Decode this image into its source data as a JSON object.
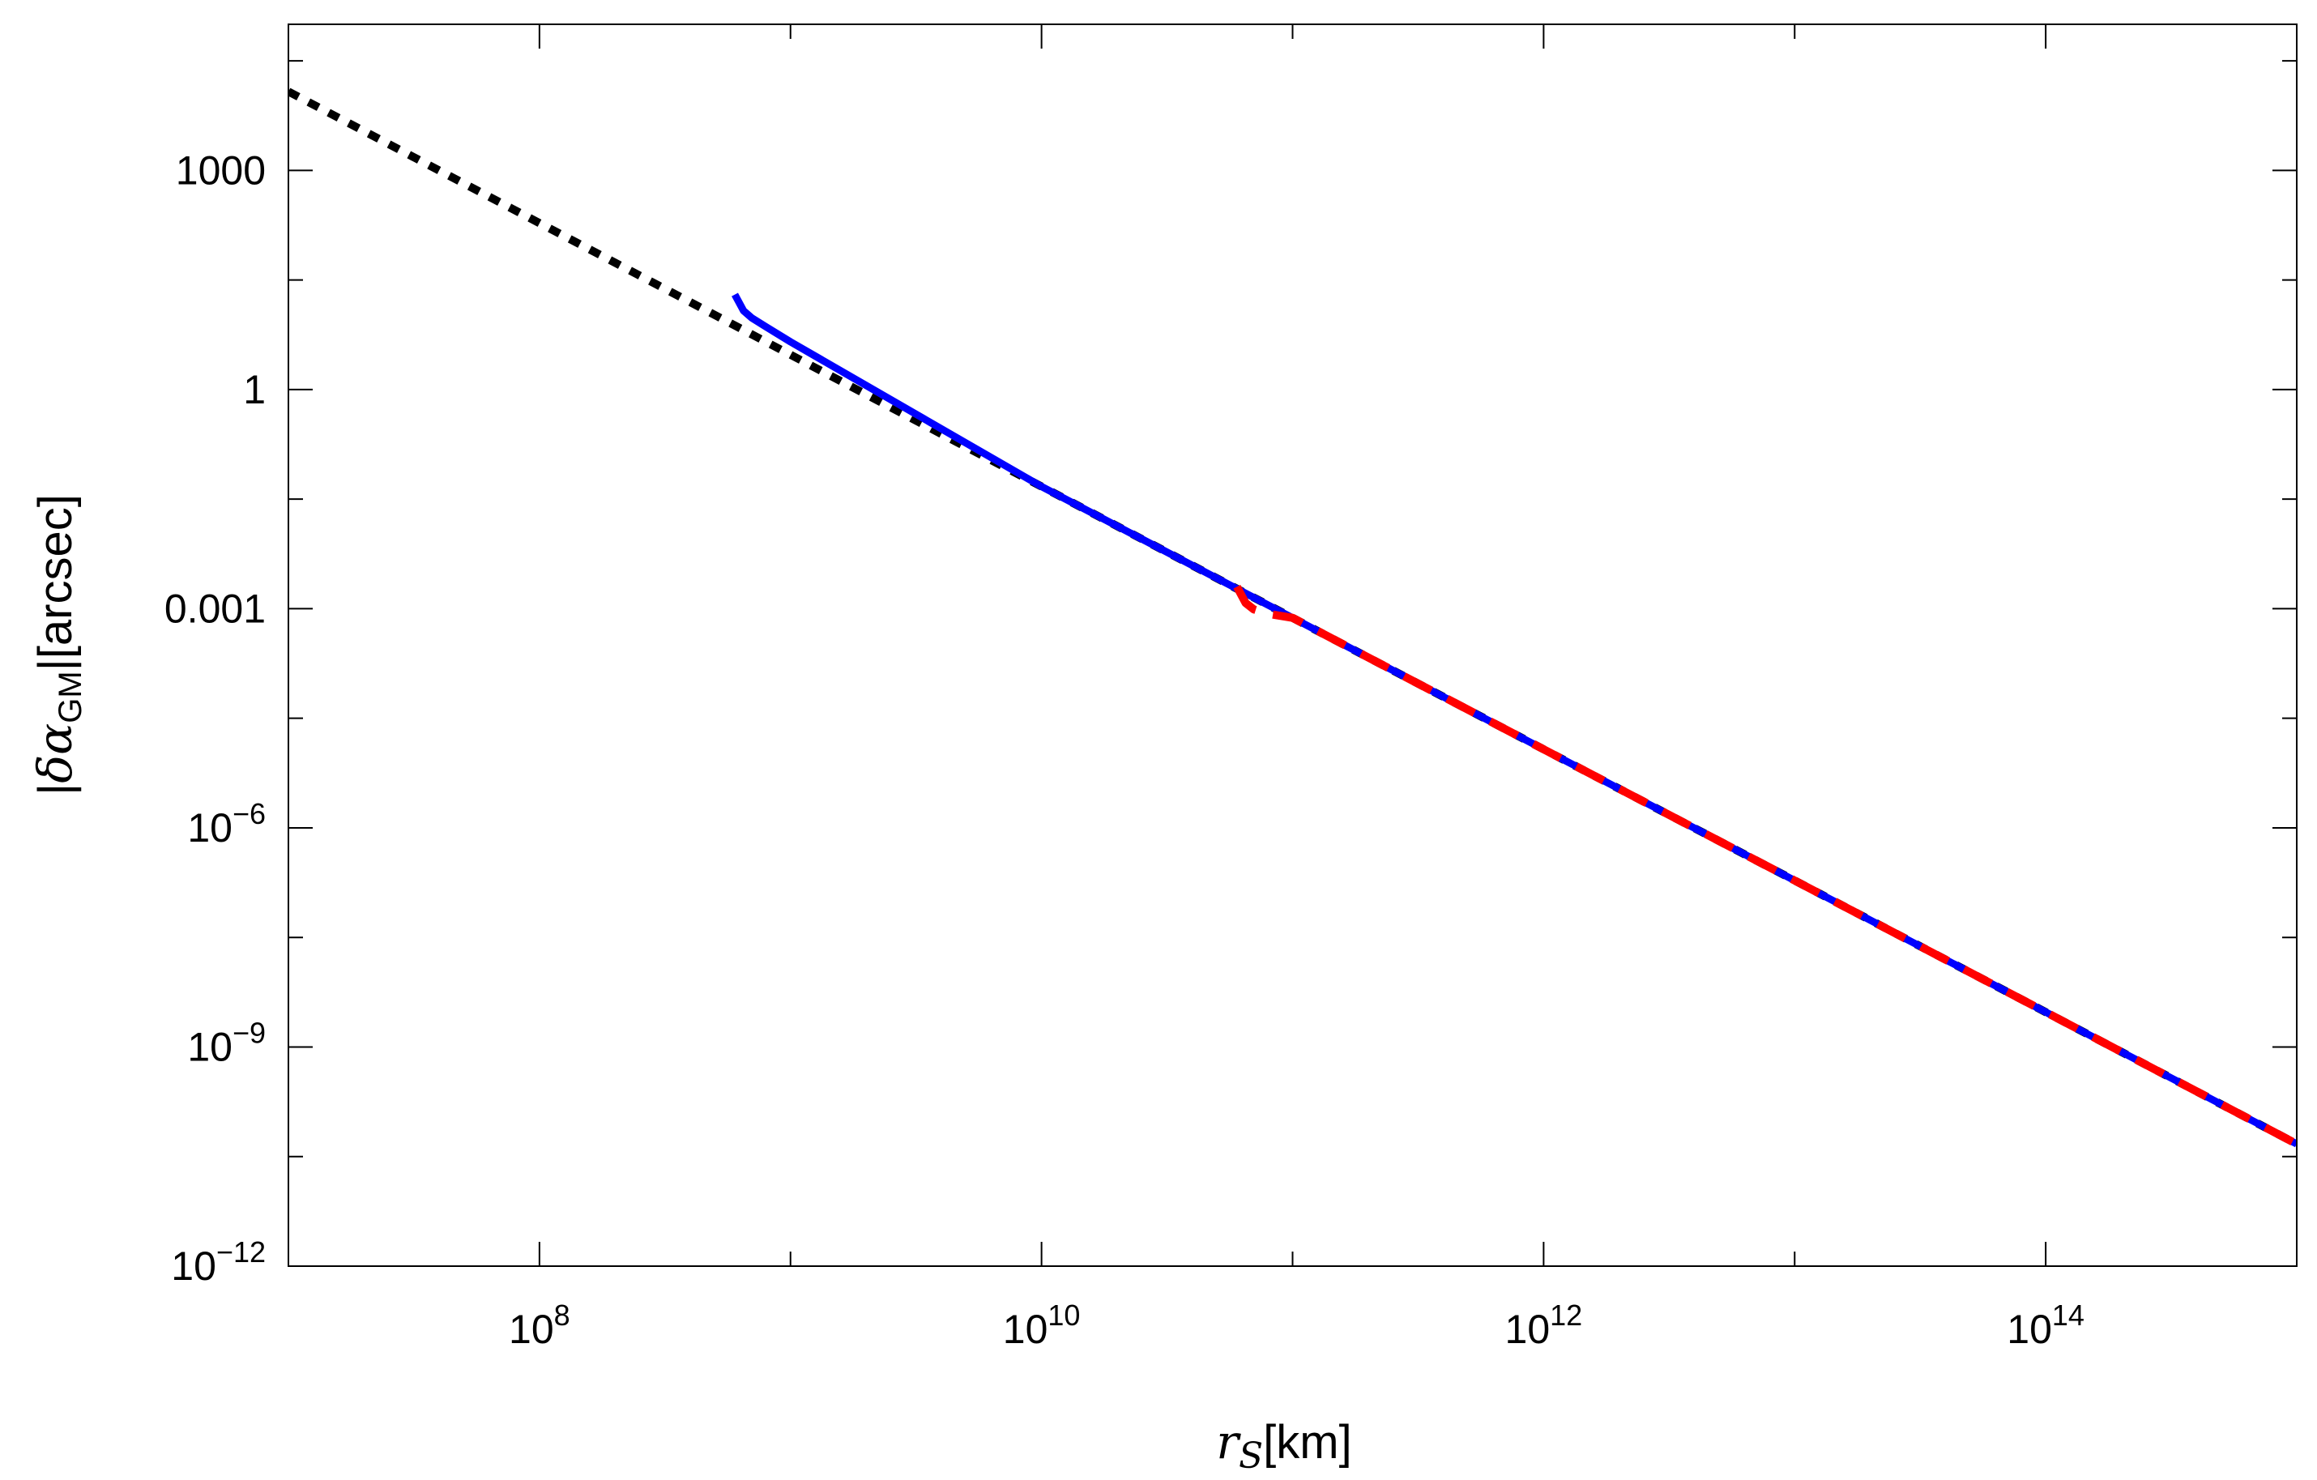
{
  "chart_data": {
    "type": "line",
    "x_scale": "log",
    "y_scale": "log",
    "xlim": [
      10000000.0,
      1000000000000000.0
    ],
    "ylim": [
      1e-12,
      100000.0
    ],
    "grid": false,
    "legend": "none",
    "xlabel": {
      "symbol": "r",
      "subscript": "S",
      "unit": "[km]"
    },
    "ylabel": {
      "prefix": "|",
      "symbol": "δα",
      "subscript": "GM",
      "suffix": "|[arcsec]"
    },
    "x_ticks": [
      {
        "value": 100000000.0,
        "base": "10",
        "exp": "8"
      },
      {
        "value": 10000000000.0,
        "base": "10",
        "exp": "10"
      },
      {
        "value": 1000000000000.0,
        "base": "10",
        "exp": "12"
      },
      {
        "value": 100000000000000.0,
        "base": "10",
        "exp": "14"
      }
    ],
    "y_ticks": [
      {
        "value": 1000,
        "text": "1000"
      },
      {
        "value": 1,
        "text": "1"
      },
      {
        "value": 0.001,
        "text": "0.001"
      },
      {
        "value": 1e-06,
        "base": "10",
        "exp": "−6"
      },
      {
        "value": 1e-09,
        "base": "10",
        "exp": "−9"
      },
      {
        "value": 1e-12,
        "base": "10",
        "exp": "−12"
      }
    ],
    "series": [
      {
        "color": "#000000",
        "style": "dotted",
        "x": [
          10000000.0,
          100000000.0,
          1000000000.0,
          10000000000.0,
          100000000000.0,
          1000000000000.0,
          10000000000000.0,
          100000000000000.0,
          1000000000000000.0
        ],
        "y": [
          12000,
          190,
          3.0,
          0.047,
          0.00075,
          1.19e-05,
          1.9e-07,
          3e-09,
          4.7e-11
        ]
      },
      {
        "color": "#0000ff",
        "style": "solid",
        "x": [
          600000000.0,
          650000000.0,
          700000000.0,
          800000000.0,
          1000000000.0,
          10000000000.0,
          100000000000.0,
          1000000000000.0,
          10000000000000.0,
          100000000000000.0,
          1000000000000000.0
        ],
        "y": [
          20,
          12,
          9.6,
          7.2,
          4.5,
          0.047,
          0.00075,
          1.19e-05,
          1.9e-07,
          3e-09,
          4.7e-11
        ]
      },
      {
        "color": "#ff0000",
        "style": "dashed",
        "x": [
          60000000000.0,
          65000000000.0,
          70000000000.0,
          80000000000.0,
          100000000000.0,
          1000000000000.0,
          10000000000000.0,
          100000000000000.0,
          1000000000000000.0
        ],
        "y": [
          0.002,
          0.0012,
          0.00098,
          0.00085,
          0.00075,
          1.19e-05,
          1.9e-07,
          3e-09,
          4.7e-11
        ]
      }
    ]
  }
}
